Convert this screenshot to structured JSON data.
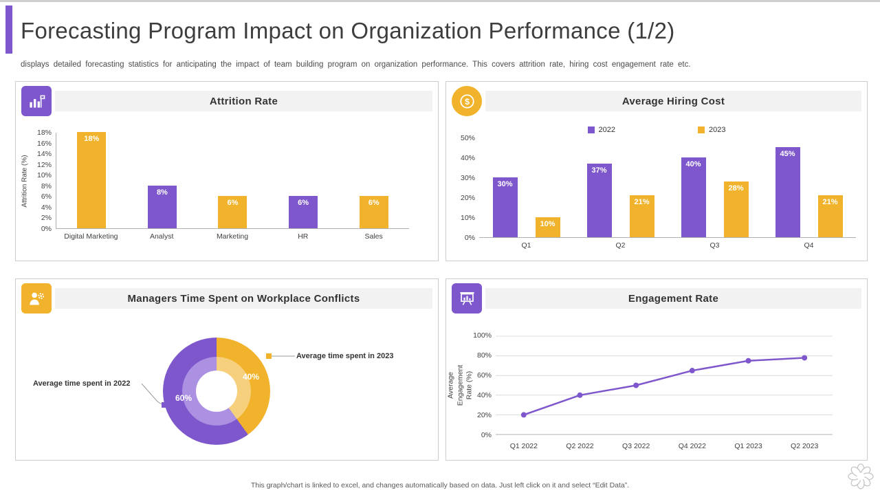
{
  "accent": {
    "purple": "#7e57cd",
    "yellow": "#f2b32c",
    "purple_light": "#ac90e2",
    "yellow_light": "#f7d07d"
  },
  "header": {
    "title": "Forecasting Program Impact on Organization Performance (1/2)",
    "subtitle": "displays detailed forecasting statistics for anticipating the impact of team building program on organization performance.  This covers attrition rate, hiring cost engagement rate etc."
  },
  "panels": {
    "attrition": {
      "title": "Attrition Rate",
      "icon": "bar-chart-flag-icon"
    },
    "hiring": {
      "title": "Average Hiring Cost",
      "icon": "dollar-coin-icon"
    },
    "conflicts": {
      "title": "Managers Time Spent on Workplace Conflicts",
      "icon": "manager-time-icon"
    },
    "engagement": {
      "title": "Engagement Rate",
      "icon": "presentation-chart-icon"
    }
  },
  "footer": {
    "note": "This graph/chart is linked to excel, and changes automatically based on data. Just left click on it and select “Edit Data”."
  },
  "chart_data": [
    {
      "id": "attrition",
      "type": "bar",
      "title": "Attrition Rate",
      "ylabel": "Attrition Rate (%)",
      "categories": [
        "Digital Marketing",
        "Analyst",
        "Marketing",
        "HR",
        "Sales"
      ],
      "values": [
        18,
        8,
        6,
        6,
        6
      ],
      "bar_colors": [
        "yellow",
        "purple",
        "yellow",
        "purple",
        "yellow"
      ],
      "data_labels": [
        "18%",
        "8%",
        "6%",
        "6%",
        "6%"
      ],
      "ylim": [
        0,
        18
      ],
      "ytick_step": 2,
      "grid": false
    },
    {
      "id": "hiring",
      "type": "bar",
      "title": "Average Hiring Cost",
      "categories": [
        "Q1",
        "Q2",
        "Q3",
        "Q4"
      ],
      "series": [
        {
          "name": "2022",
          "color": "purple",
          "values": [
            30,
            37,
            40,
            45
          ]
        },
        {
          "name": "2023",
          "color": "yellow",
          "values": [
            10,
            21,
            28,
            21
          ]
        }
      ],
      "ylim": [
        0,
        50
      ],
      "ytick_step": 10,
      "legend_position": "top",
      "grid": false
    },
    {
      "id": "conflicts",
      "type": "pie",
      "title": "Managers Time Spent on Workplace Conflicts",
      "slices": [
        {
          "label": "Average time spent in 2023",
          "value": 40,
          "color": "yellow",
          "data_label": "40%"
        },
        {
          "label": "Average time spent in 2022",
          "value": 60,
          "color": "purple",
          "data_label": "60%"
        }
      ]
    },
    {
      "id": "engagement",
      "type": "line",
      "title": "Engagement Rate",
      "ylabel": "Average Engagement Rate (%)",
      "categories": [
        "Q1 2022",
        "Q2 2022",
        "Q3 2022",
        "Q4 2022",
        "Q1 2023",
        "Q2 2023"
      ],
      "values": [
        20,
        40,
        50,
        65,
        75,
        78
      ],
      "line_color": "purple",
      "ylim": [
        0,
        100
      ],
      "ytick_step": 20,
      "grid": true
    }
  ]
}
